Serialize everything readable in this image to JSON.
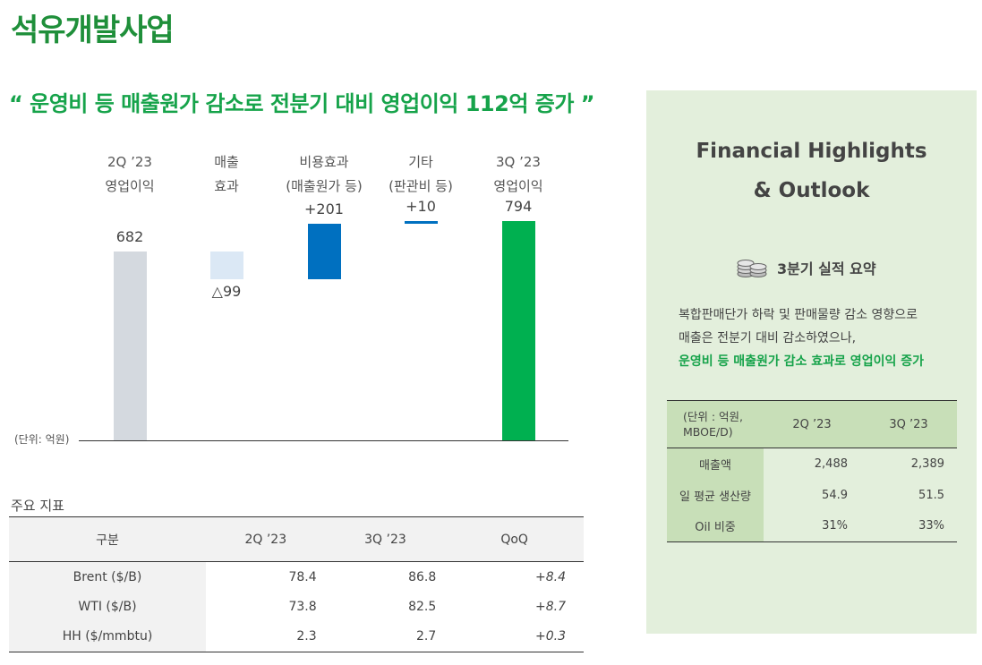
{
  "page_title": "석유개발사업",
  "headline": "“ 운영비 등 매출원가  감소로 전분기 대비 영업이익 112억 증가 ”",
  "chart_data": {
    "type": "bar",
    "subtype": "waterfall",
    "unit_label": "(단위: 억원)",
    "categories": [
      [
        "2Q ’23",
        "영업이익"
      ],
      [
        "매출",
        "효과"
      ],
      [
        "비용효과",
        "(매출원가 등)"
      ],
      [
        "기타",
        "(판관비 등)"
      ],
      [
        "3Q ’23",
        "영업이익"
      ]
    ],
    "values": [
      682,
      -99,
      201,
      10,
      794
    ],
    "value_labels": [
      "682",
      "△99",
      "+201",
      "+10",
      "794"
    ],
    "colors": [
      "#d4d9df",
      "#dbe8f5",
      "#0070c0",
      "#0070c0",
      "#00b050"
    ],
    "ylim": [
      0,
      850
    ]
  },
  "indicators": {
    "title": "주요 지표",
    "headers": [
      "구분",
      "2Q ’23",
      "3Q ’23",
      "QoQ"
    ],
    "rows": [
      [
        "Brent ($/B)",
        "78.4",
        "86.8",
        "+8.4"
      ],
      [
        "WTI ($/B)",
        "73.8",
        "82.5",
        "+8.7"
      ],
      [
        "HH ($/mmbtu)",
        "2.3",
        "2.7",
        "+0.3"
      ]
    ]
  },
  "panel": {
    "title_line1": "Financial Highlights",
    "title_line2": "& Outlook",
    "summary_icon": "coins-icon",
    "summary_heading": "3분기 실적 요약",
    "summary_line1": "복합판매단가 하락 및 판매물량 감소 영향으로",
    "summary_line2": "매출은 전분기 대비 감소하였으나,",
    "summary_highlight": "운영비 등 매출원가 감소 효과로 영업이익 증가",
    "table": {
      "unit_line1": "(단위 : 억원,",
      "unit_line2": "MBOE/D)",
      "col1": "2Q ’23",
      "col2": "3Q ’23",
      "rows": [
        [
          "매출액",
          "2,488",
          "2,389"
        ],
        [
          "일 평균 생산량",
          "54.9",
          "51.5"
        ],
        [
          "Oil 비중",
          "31%",
          "33%"
        ]
      ]
    }
  }
}
